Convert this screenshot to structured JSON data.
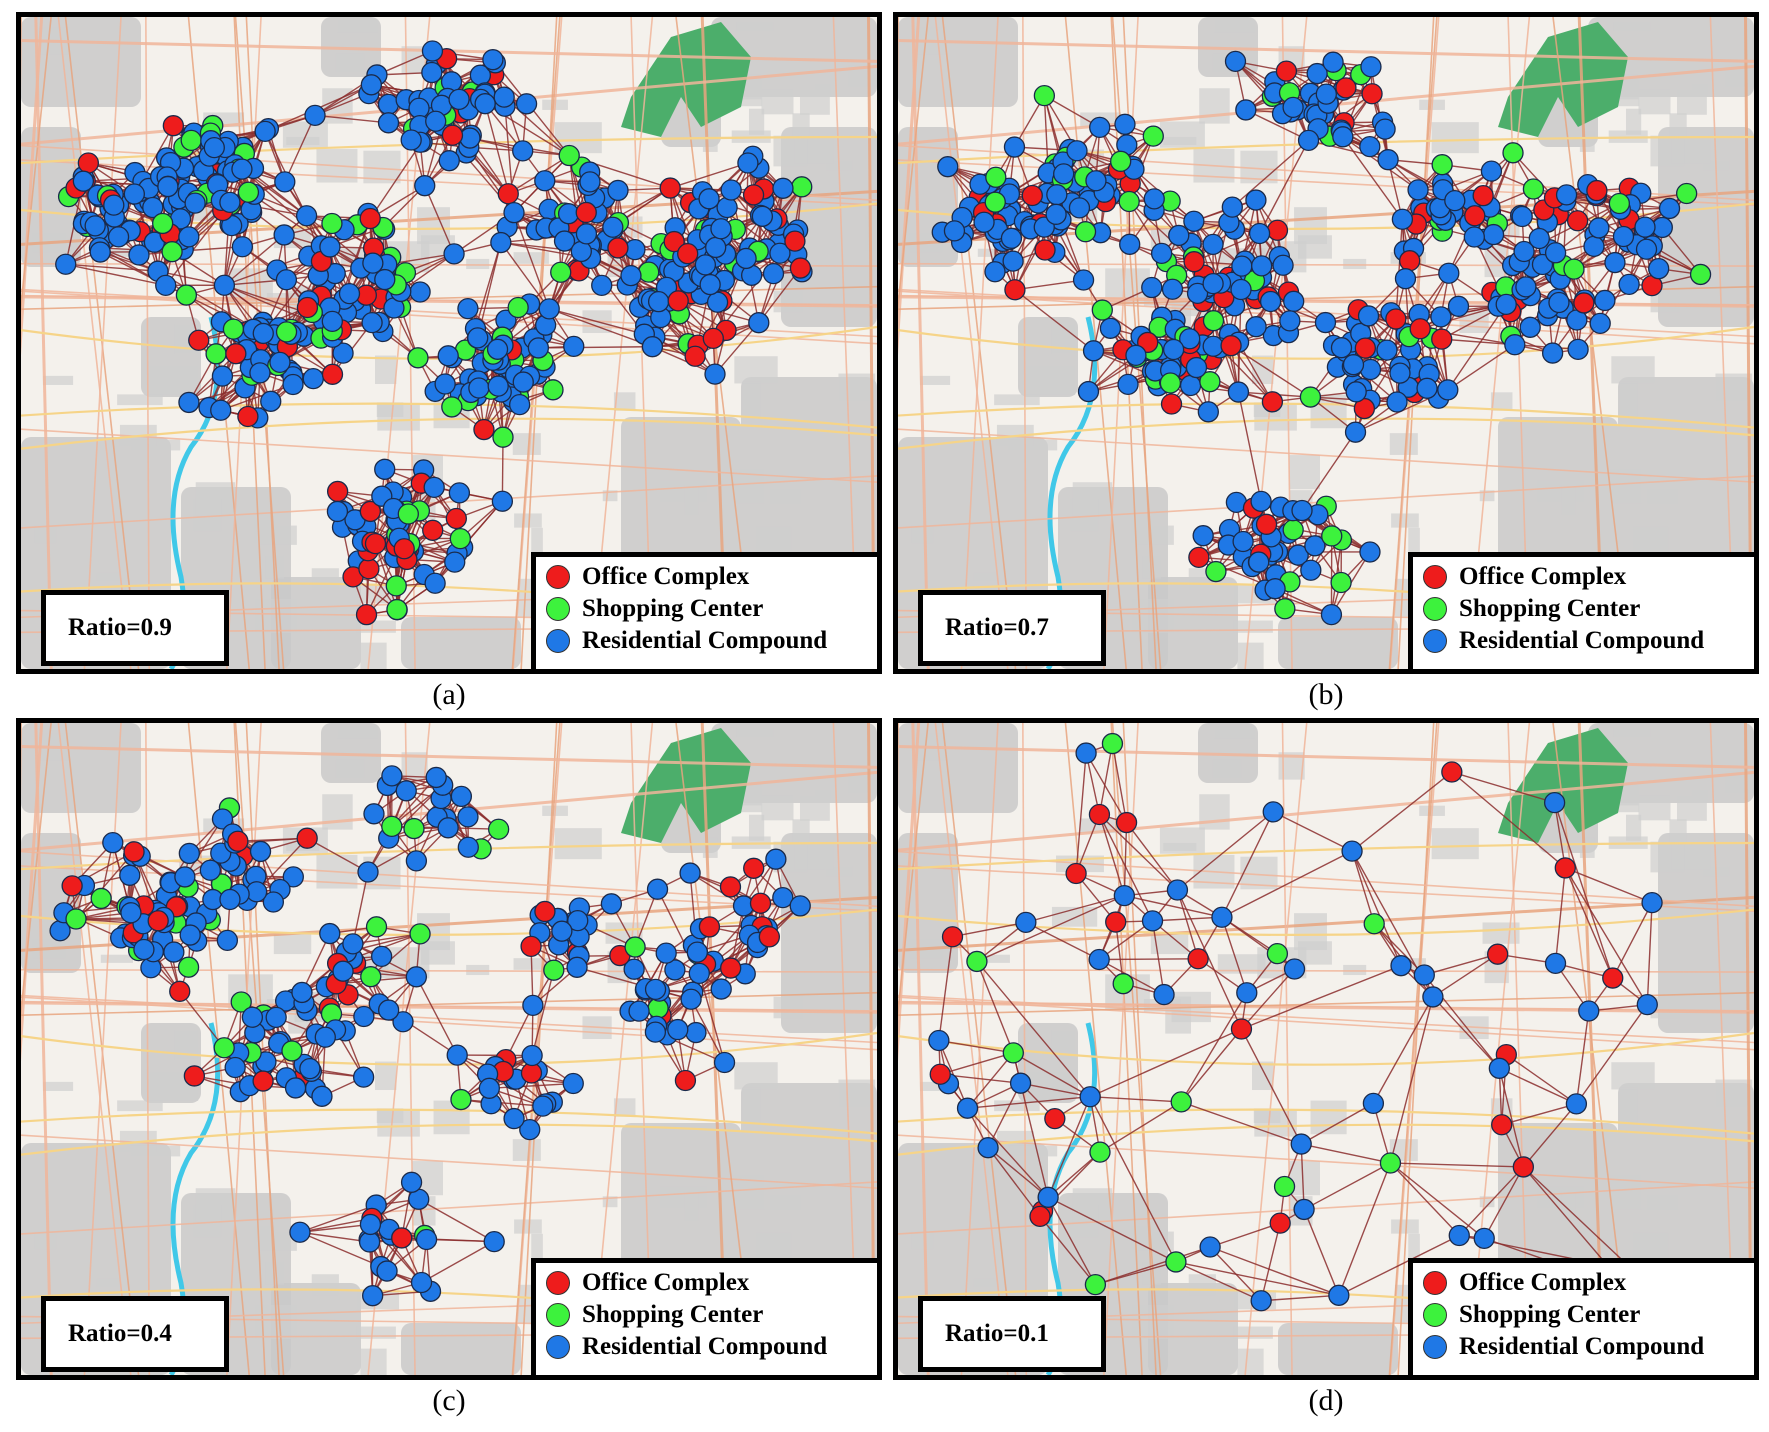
{
  "legend": {
    "office": {
      "label": "Office Complex",
      "color": "#ee1c1c"
    },
    "shopping": {
      "label": "Shopping Center",
      "color": "#3df23d"
    },
    "residential": {
      "label": "Residential Compound",
      "color": "#1f78e6"
    }
  },
  "edge_color": "#8b2d2d",
  "panels": [
    {
      "id": "a",
      "ratio_label": "Ratio=0.9",
      "caption": "(a)",
      "ratio": 0.9
    },
    {
      "id": "b",
      "ratio_label": "Ratio=0.7",
      "caption": "(b)",
      "ratio": 0.7
    },
    {
      "id": "c",
      "ratio_label": "Ratio=0.4",
      "caption": "(c)",
      "ratio": 0.4
    },
    {
      "id": "d",
      "ratio_label": "Ratio=0.1",
      "caption": "(d)",
      "ratio": 0.1
    }
  ]
}
